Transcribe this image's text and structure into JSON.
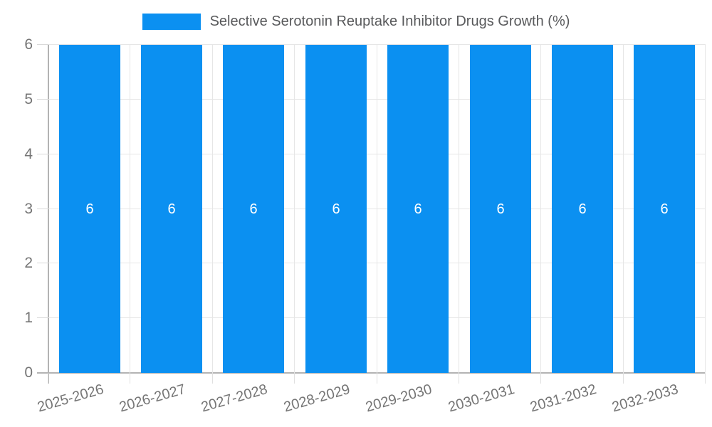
{
  "legend": {
    "label": "Selective Serotonin Reuptake Inhibitor Drugs Growth (%)"
  },
  "colors": {
    "bar": "#0b90f1",
    "grid": "#e6e6e6",
    "axis": "#b3b3b3",
    "tick_text": "#757575",
    "legend_text": "#58595b",
    "bar_label_text": "#ffffff",
    "background": "#ffffff"
  },
  "chart_data": {
    "type": "bar",
    "title": "Selective Serotonin Reuptake Inhibitor Drugs Growth (%)",
    "categories": [
      "2025-2026",
      "2026-2027",
      "2027-2028",
      "2028-2029",
      "2029-2030",
      "2030-2031",
      "2031-2032",
      "2032-2033"
    ],
    "series": [
      {
        "name": "Selective Serotonin Reuptake Inhibitor Drugs Growth (%)",
        "values": [
          6,
          6,
          6,
          6,
          6,
          6,
          6,
          6
        ]
      }
    ],
    "bar_value_labels": [
      "6",
      "6",
      "6",
      "6",
      "6",
      "6",
      "6",
      "6"
    ],
    "xlabel": "",
    "ylabel": "",
    "ylim": [
      0,
      6
    ],
    "yticks": [
      0,
      1,
      2,
      3,
      4,
      5,
      6
    ],
    "grid": true,
    "legend_position": "top"
  }
}
